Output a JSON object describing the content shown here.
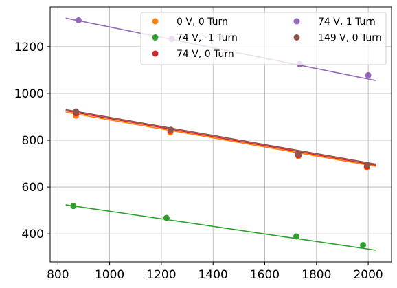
{
  "chart_data": {
    "type": "scatter",
    "title": "",
    "xlabel": "",
    "ylabel": "",
    "xlim": [
      770,
      2090
    ],
    "ylim": [
      280,
      1370
    ],
    "xticks": [
      800,
      1000,
      1200,
      1400,
      1600,
      1800,
      2000
    ],
    "yticks": [
      400,
      600,
      800,
      1000,
      1200
    ],
    "grid": true,
    "legend": {
      "placement": "top-right",
      "columns": 2
    },
    "series": [
      {
        "name": "0 V, 0 Turn",
        "color": "#ff7f0e",
        "points": [
          [
            870,
            905
          ],
          [
            1235,
            833
          ],
          [
            1730,
            732
          ],
          [
            1995,
            683
          ]
        ],
        "fit": [
          [
            830,
            920
          ],
          [
            2030,
            688
          ]
        ]
      },
      {
        "name": "74 V, -1 Turn",
        "color": "#2ca02c",
        "points": [
          [
            860,
            519
          ],
          [
            1220,
            468
          ],
          [
            1722,
            389
          ],
          [
            1980,
            352
          ]
        ],
        "fit": [
          [
            830,
            524
          ],
          [
            2030,
            330
          ]
        ]
      },
      {
        "name": "74 V, 0 Turn",
        "color": "#d62728",
        "points": [
          [
            870,
            915
          ],
          [
            1235,
            840
          ],
          [
            1730,
            736
          ],
          [
            1995,
            688
          ]
        ],
        "fit": [
          [
            830,
            926
          ],
          [
            2030,
            693
          ]
        ]
      },
      {
        "name": "74 V, 1 Turn",
        "color": "#9467bd",
        "points": [
          [
            880,
            1313
          ],
          [
            1240,
            1233
          ],
          [
            1735,
            1125
          ],
          [
            2000,
            1078
          ]
        ],
        "fit": [
          [
            830,
            1322
          ],
          [
            2030,
            1055
          ]
        ]
      },
      {
        "name": "149 V, 0 Turn",
        "color": "#8c564b",
        "points": [
          [
            870,
            923
          ],
          [
            1237,
            845
          ],
          [
            1730,
            743
          ],
          [
            1997,
            695
          ]
        ],
        "fit": [
          [
            830,
            931
          ],
          [
            2030,
            698
          ]
        ]
      }
    ]
  }
}
